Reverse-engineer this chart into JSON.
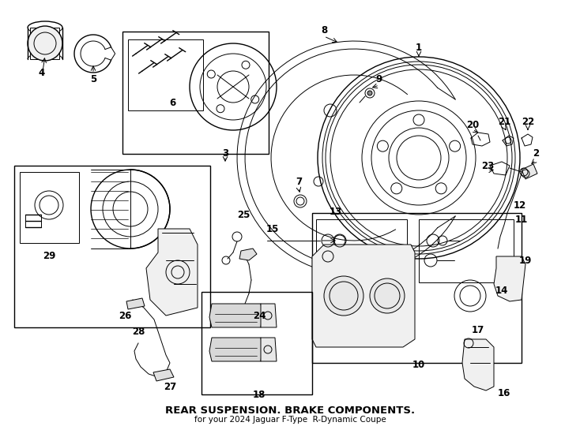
{
  "title": "REAR SUSPENSION. BRAKE COMPONENTS.",
  "subtitle": "for your 2024 Jaguar F-Type  R-Dynamic Coupe",
  "bg_color": "#ffffff",
  "line_color": "#000000",
  "fig_width": 7.34,
  "fig_height": 5.4,
  "dpi": 100,
  "label_fontsize": 8.5,
  "title_fontsize": 9.5
}
